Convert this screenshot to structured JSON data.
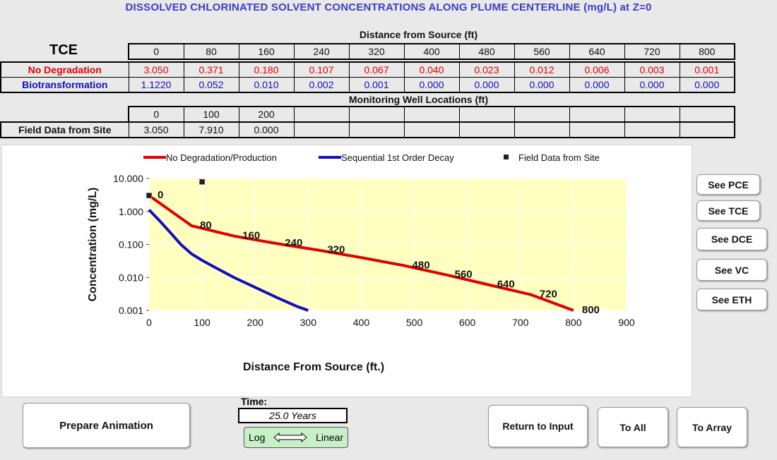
{
  "title": "DISSOLVED CHLORINATED SOLVENT CONCENTRATIONS ALONG PLUME CENTERLINE (mg/L) at Z=0",
  "distance_header": "Distance from Source (ft)",
  "compound": "TCE",
  "distances": [
    "0",
    "80",
    "160",
    "240",
    "320",
    "400",
    "480",
    "560",
    "640",
    "720",
    "800"
  ],
  "rows": [
    {
      "label": "No Degradation",
      "color": "#e00000",
      "values": [
        "3.050",
        "0.371",
        "0.180",
        "0.107",
        "0.067",
        "0.040",
        "0.023",
        "0.012",
        "0.006",
        "0.003",
        "0.001"
      ]
    },
    {
      "label": "Biotransformation",
      "color": "#1010c0",
      "values": [
        "1.1220",
        "0.052",
        "0.010",
        "0.002",
        "0.001",
        "0.000",
        "0.000",
        "0.000",
        "0.000",
        "0.000",
        "0.000"
      ]
    }
  ],
  "wells_header": "Monitoring Well Locations (ft)",
  "well_locations": [
    "0",
    "100",
    "200",
    "",
    "",
    "",
    "",
    "",
    "",
    "",
    ""
  ],
  "field_label": "Field Data from Site",
  "field_values": [
    "3.050",
    "7.910",
    "0.000",
    "",
    "",
    "",
    "",
    "",
    "",
    "",
    ""
  ],
  "chart_data": {
    "type": "line",
    "xlabel": "Distance From Source (ft.)",
    "ylabel": "Concentration (mg/L)",
    "xlim": [
      0,
      900
    ],
    "x_ticks": [
      "0",
      "100",
      "200",
      "300",
      "400",
      "500",
      "600",
      "700",
      "800",
      "900"
    ],
    "ylim": [
      0.001,
      10
    ],
    "y_scale": "log",
    "y_ticks": [
      "0.001",
      "0.010",
      "0.100",
      "1.000",
      "10.000"
    ],
    "grid": true,
    "legend_position": "top",
    "series": [
      {
        "name": "No Degradation/Production",
        "color": "#e00000",
        "x": [
          0,
          80,
          160,
          240,
          320,
          400,
          480,
          560,
          640,
          720,
          800
        ],
        "y": [
          3.05,
          0.371,
          0.18,
          0.107,
          0.067,
          0.04,
          0.023,
          0.012,
          0.006,
          0.003,
          0.001
        ]
      },
      {
        "name": "Sequential 1st Order Decay",
        "color": "#1010c0",
        "x": [
          0,
          20,
          40,
          60,
          80,
          100,
          120,
          160,
          200,
          240,
          280,
          300
        ],
        "y": [
          1.122,
          0.52,
          0.23,
          0.1,
          0.052,
          0.033,
          0.022,
          0.01,
          0.005,
          0.0025,
          0.0013,
          0.001
        ]
      }
    ],
    "scatter": {
      "name": "Field Data from Site",
      "x": [
        0,
        100
      ],
      "y": [
        3.05,
        7.91
      ]
    },
    "point_labels": [
      {
        "text": "0",
        "x": 0,
        "y": 3.05
      },
      {
        "text": "80",
        "x": 80,
        "y": 0.371
      },
      {
        "text": "160",
        "x": 160,
        "y": 0.18
      },
      {
        "text": "240",
        "x": 240,
        "y": 0.107
      },
      {
        "text": "320",
        "x": 320,
        "y": 0.067
      },
      {
        "text": "480",
        "x": 480,
        "y": 0.023
      },
      {
        "text": "560",
        "x": 560,
        "y": 0.012
      },
      {
        "text": "640",
        "x": 640,
        "y": 0.006
      },
      {
        "text": "720",
        "x": 720,
        "y": 0.003
      },
      {
        "text": "800",
        "x": 800,
        "y": 0.001
      }
    ]
  },
  "buttons": {
    "see_pce": "See PCE",
    "see_tce": "See TCE",
    "see_dce": "See DCE",
    "see_vc": "See VC",
    "see_eth": "See ETH",
    "prepare_animation": "Prepare Animation",
    "return_to_input": "Return to Input",
    "to_all": "To All",
    "to_array": "To Array"
  },
  "time": {
    "label": "Time:",
    "value": "25.0  Years"
  },
  "toggle": {
    "left": "Log",
    "right": "Linear"
  }
}
